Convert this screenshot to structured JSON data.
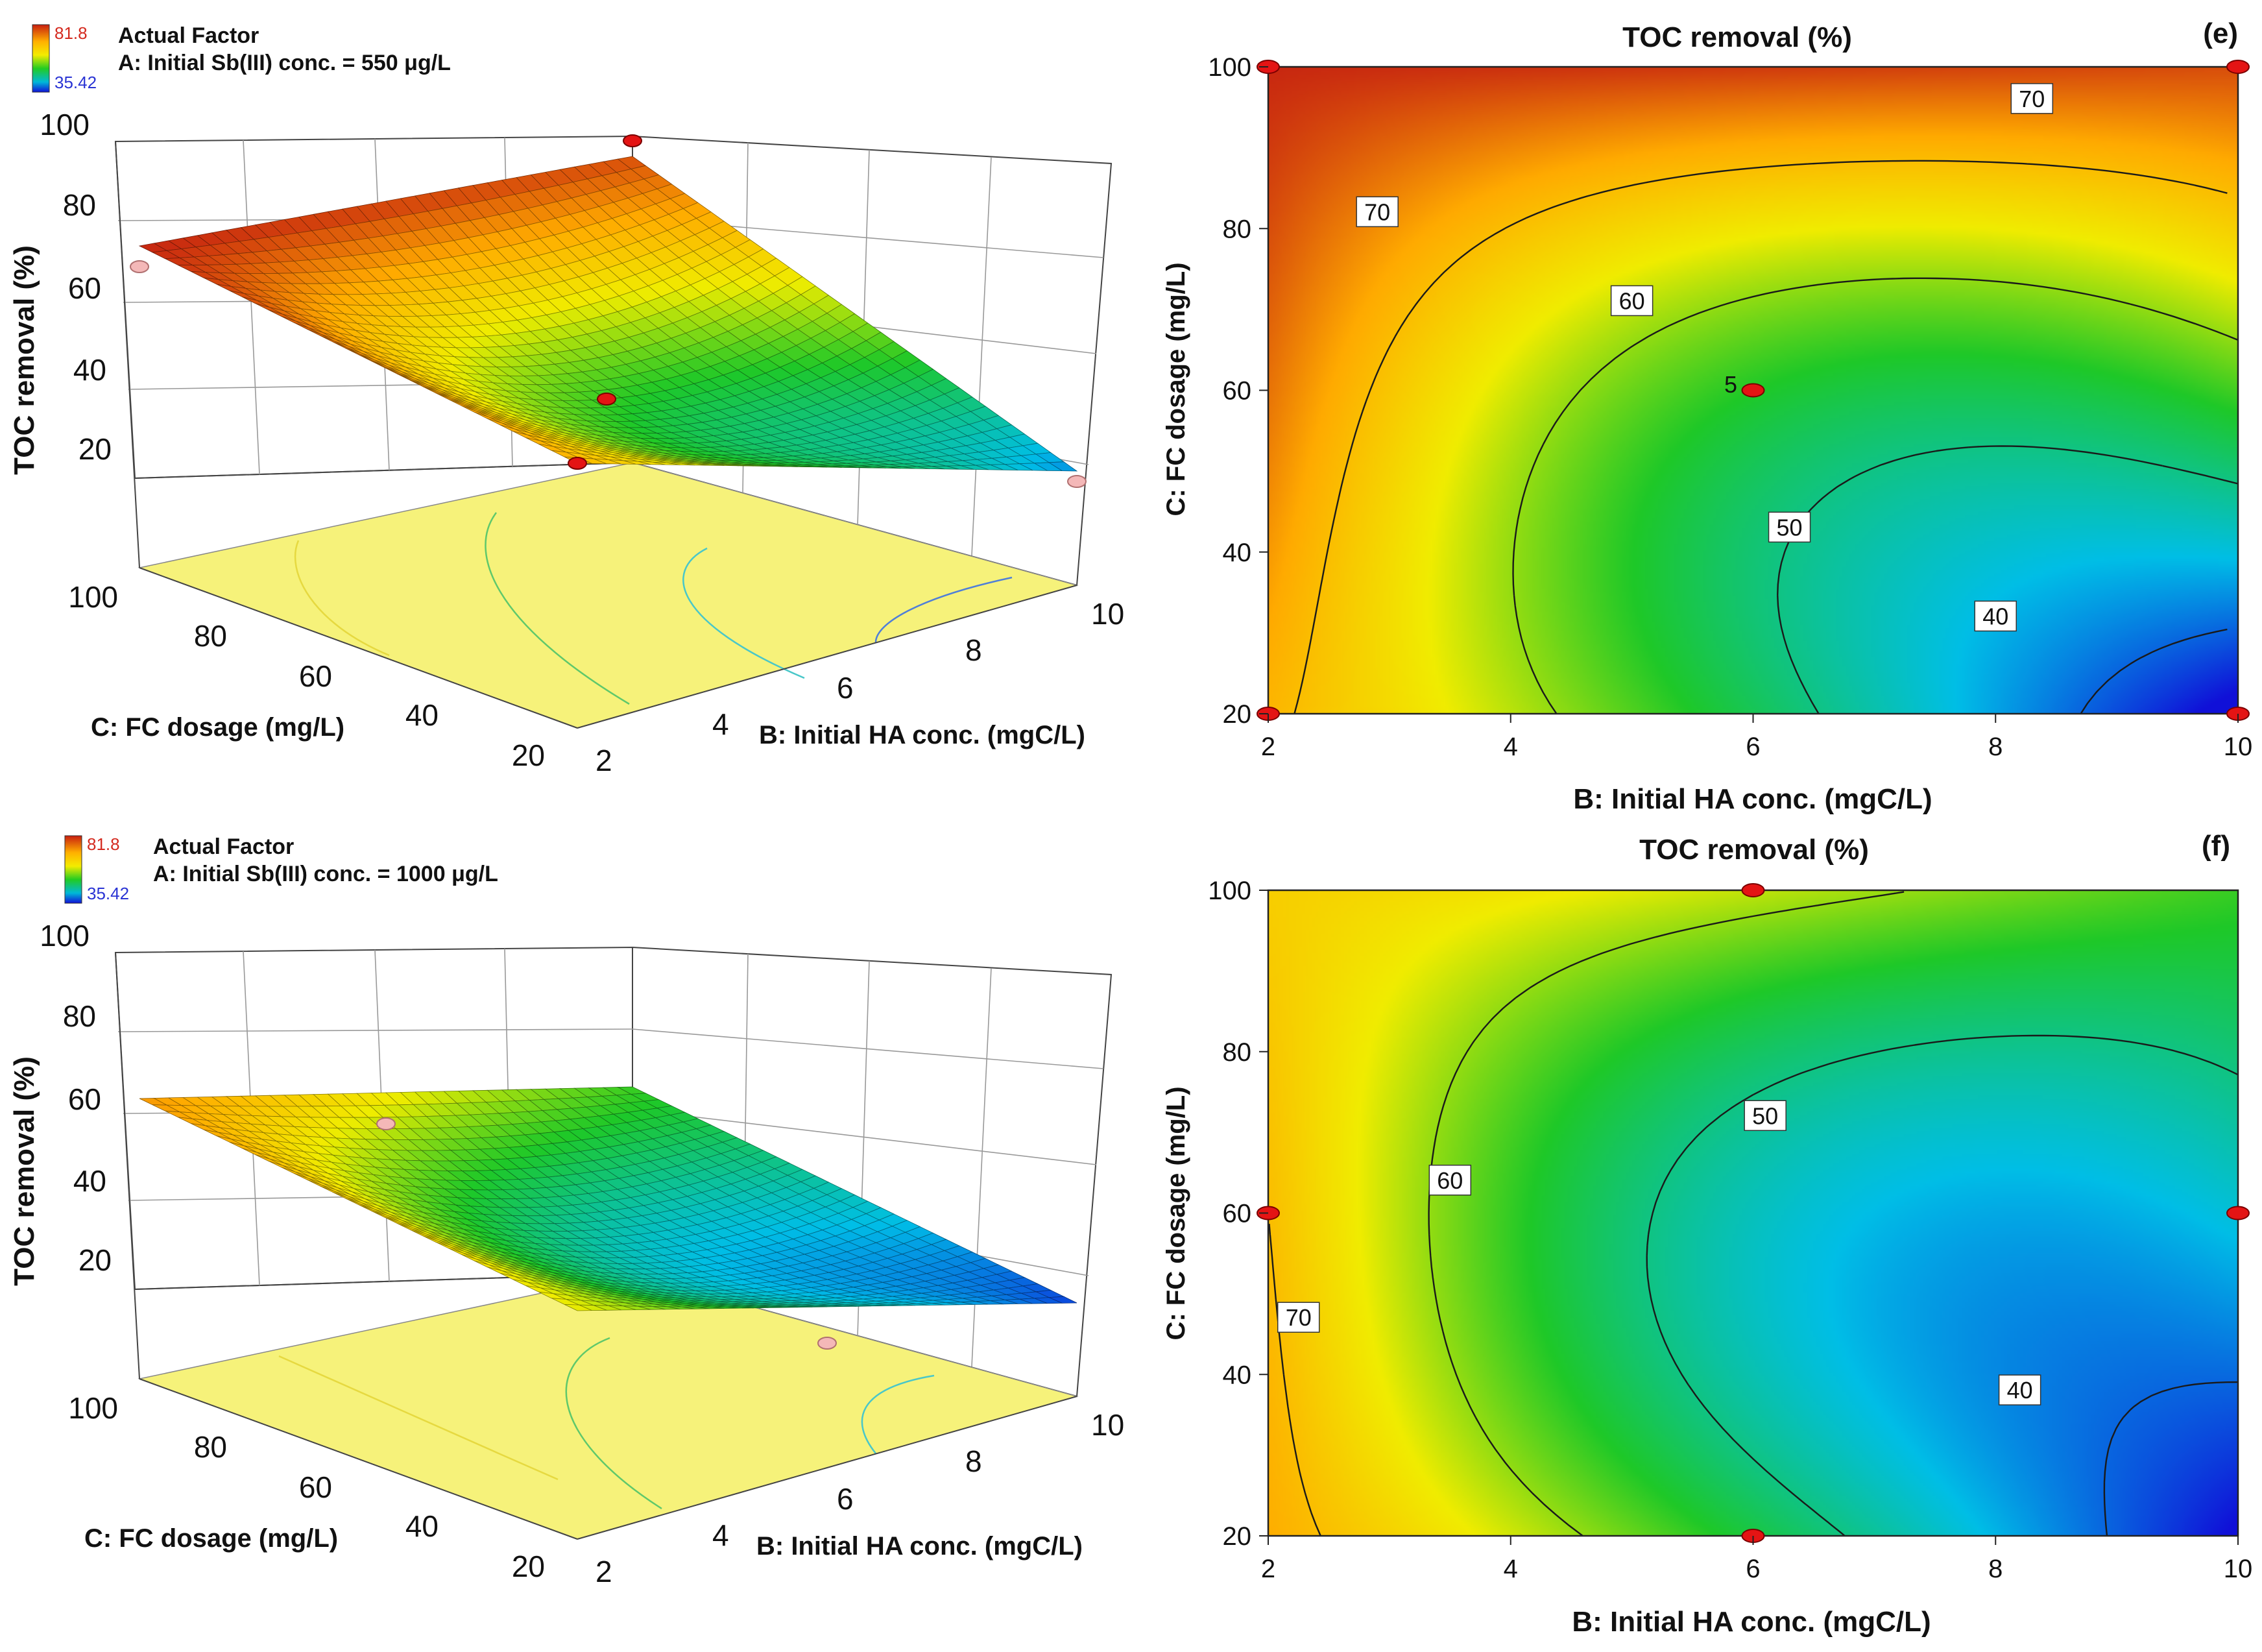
{
  "chart_data": [
    {
      "id": "surface_550",
      "type": "surface3d",
      "legend": {
        "max": "81.8",
        "min": "35.42",
        "max_color": "#d42a1f",
        "min_color": "#2a34d4"
      },
      "factor_title": "Actual Factor",
      "factor_label": "A: Initial Sb(III) conc. = 550 μg/L",
      "zlabel": "TOC removal (%)",
      "z_ticks": [
        "20",
        "40",
        "60",
        "80",
        "100"
      ],
      "zlim": [
        20,
        100
      ],
      "xlabel": "B: Initial HA conc. (mgC/L)",
      "x_ticks": [
        "2",
        "4",
        "6",
        "8",
        "10"
      ],
      "xlim": [
        2,
        10
      ],
      "ylabel": "C: FC dosage (mg/L)",
      "y_ticks": [
        "20",
        "40",
        "60",
        "80",
        "100"
      ],
      "ylim": [
        20,
        100
      ],
      "corners_z": {
        "x2_y20": 71,
        "x10_y20": 42,
        "x2_y100": 82,
        "x10_y100": 79
      },
      "center_z": 56,
      "design_points": [
        {
          "b": 2,
          "c": 20,
          "toc": 71
        },
        {
          "b": 10,
          "c": 100,
          "toc": 82
        },
        {
          "b": 6,
          "c": 60,
          "toc": 56
        },
        {
          "b": 10,
          "c": 20,
          "toc": 40
        },
        {
          "b": 2,
          "c": 100,
          "toc": 78
        }
      ]
    },
    {
      "id": "contour_e",
      "type": "contour",
      "panel_label": "(e)",
      "title": "TOC removal (%)",
      "xlabel": "B: Initial HA conc. (mgC/L)",
      "ylabel": "C: FC dosage (mg/L)",
      "x_ticks": [
        "2",
        "4",
        "6",
        "8",
        "10"
      ],
      "y_ticks": [
        "20",
        "40",
        "60",
        "80",
        "100"
      ],
      "xlim": [
        2,
        10
      ],
      "ylim": [
        20,
        100
      ],
      "corners_z": {
        "x2_y20": 71,
        "x10_y20": 34,
        "x2_y100": 81.8,
        "x10_y100": 79
      },
      "center_z": 55,
      "contour_levels": [
        70,
        60,
        50,
        40
      ],
      "contour_labels": [
        {
          "text": "70",
          "b": 2.9,
          "c": 82
        },
        {
          "text": "70",
          "b": 8.3,
          "c": 96
        },
        {
          "text": "60",
          "b": 5.0,
          "c": 71
        },
        {
          "text": "50",
          "b": 6.3,
          "c": 43
        },
        {
          "text": "40",
          "b": 8.0,
          "c": 32
        }
      ],
      "center_point_label": "5",
      "design_points": [
        {
          "b": 2,
          "c": 100
        },
        {
          "b": 10,
          "c": 100
        },
        {
          "b": 6,
          "c": 60
        },
        {
          "b": 2,
          "c": 20
        },
        {
          "b": 10,
          "c": 20
        }
      ]
    },
    {
      "id": "surface_1000",
      "type": "surface3d",
      "legend": {
        "max": "81.8",
        "min": "35.42",
        "max_color": "#d42a1f",
        "min_color": "#2a34d4"
      },
      "factor_title": "Actual Factor",
      "factor_label": "A: Initial Sb(III) conc. = 1000 μg/L",
      "zlabel": "TOC removal (%)",
      "z_ticks": [
        "20",
        "40",
        "60",
        "80",
        "100"
      ],
      "zlim": [
        20,
        100
      ],
      "xlabel": "B: Initial HA conc. (mgC/L)",
      "x_ticks": [
        "2",
        "4",
        "6",
        "8",
        "10"
      ],
      "xlim": [
        2,
        10
      ],
      "ylabel": "C: FC dosage (mg/L)",
      "y_ticks": [
        "20",
        "40",
        "60",
        "80",
        "100"
      ],
      "ylim": [
        20,
        100
      ],
      "corners_z": {
        "x2_y20": 64,
        "x10_y20": 38,
        "x2_y100": 74,
        "x10_y100": 56
      },
      "center_z": 48,
      "design_points": [
        {
          "b": 6,
          "c": 100,
          "toc": 59
        },
        {
          "b": 6,
          "c": 20,
          "toc": 44
        }
      ]
    },
    {
      "id": "contour_f",
      "type": "contour",
      "panel_label": "(f)",
      "title": "TOC removal (%)",
      "xlabel": "B: Initial HA conc. (mgC/L)",
      "ylabel": "C: FC dosage (mg/L)",
      "x_ticks": [
        "2",
        "4",
        "6",
        "8",
        "10"
      ],
      "y_ticks": [
        "20",
        "40",
        "60",
        "80",
        "100"
      ],
      "xlim": [
        2,
        10
      ],
      "ylim": [
        20,
        100
      ],
      "corners_z": {
        "x2_y20": 72,
        "x10_y20": 35,
        "x2_y100": 68,
        "x10_y100": 56
      },
      "center_z": 47,
      "contour_levels": [
        70,
        60,
        50,
        40
      ],
      "contour_labels": [
        {
          "text": "70",
          "b": 2.25,
          "c": 47
        },
        {
          "text": "60",
          "b": 3.5,
          "c": 64
        },
        {
          "text": "50",
          "b": 6.1,
          "c": 72
        },
        {
          "text": "40",
          "b": 8.2,
          "c": 38
        }
      ],
      "design_points": [
        {
          "b": 6,
          "c": 100
        },
        {
          "b": 2,
          "c": 60
        },
        {
          "b": 10,
          "c": 60
        },
        {
          "b": 6,
          "c": 20
        }
      ]
    }
  ]
}
